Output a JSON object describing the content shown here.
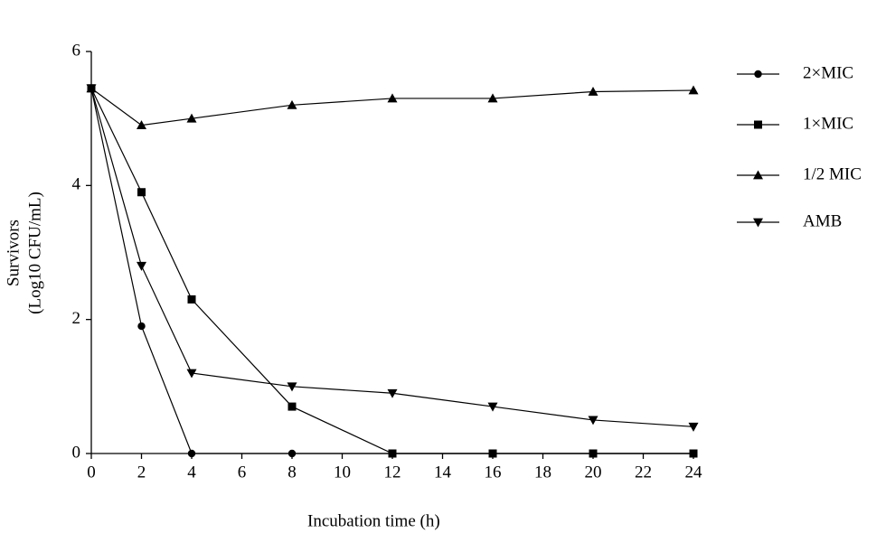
{
  "chart_data": {
    "type": "line",
    "y_label": [
      "Survivors",
      "(Log10 CFU/mL)"
    ],
    "x_label": "Incubation time (h)",
    "x": [
      0,
      2,
      4,
      8,
      12,
      16,
      20,
      24
    ],
    "series": [
      {
        "name": "2×MIC",
        "color": "#000000",
        "marker": "circle",
        "values": [
          5.45,
          1.9,
          0,
          0,
          0,
          0,
          0,
          0
        ]
      },
      {
        "name": "1×MIC",
        "color": "#000000",
        "marker": "square",
        "values": [
          5.45,
          3.9,
          2.3,
          0.7,
          0,
          0,
          0,
          0
        ]
      },
      {
        "name": "1/2 MIC",
        "color": "#000000",
        "marker": "triangle-up",
        "values": [
          5.45,
          4.9,
          5.0,
          5.2,
          5.3,
          5.3,
          5.4,
          5.42
        ]
      },
      {
        "name": "AMB",
        "color": "#000000",
        "marker": "triangle-down",
        "values": [
          5.45,
          2.8,
          1.2,
          1.0,
          0.9,
          0.7,
          0.5,
          0.4
        ]
      }
    ],
    "xlim": [
      0,
      24
    ],
    "xticks": [
      0,
      2,
      4,
      6,
      8,
      10,
      12,
      14,
      16,
      18,
      20,
      22,
      24
    ],
    "ylim": [
      0,
      6
    ],
    "yticks": [
      0,
      2,
      4,
      6
    ],
    "grid": false,
    "legend": "right"
  }
}
